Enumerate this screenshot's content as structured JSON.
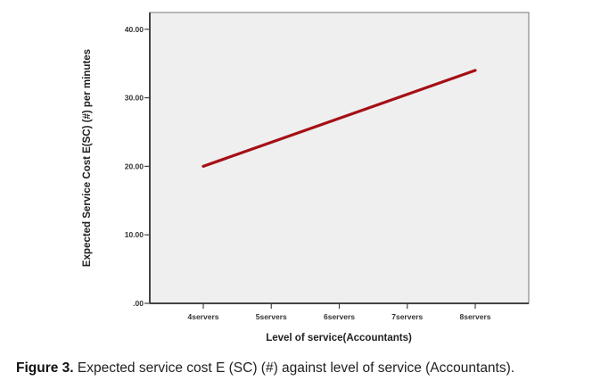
{
  "chart_data": {
    "type": "line",
    "title": "",
    "xlabel": "Level of service(Accountants)",
    "ylabel": "Expected Service Cost E(SC) (#) per minutes",
    "categories": [
      "4servers",
      "5servers",
      "6servers",
      "7servers",
      "8servers"
    ],
    "series": [
      {
        "name": "Expected service cost",
        "values": [
          20.0,
          23.5,
          27.0,
          30.5,
          34.0
        ],
        "color": "#a50f15"
      }
    ],
    "ylim": [
      0,
      42.5
    ],
    "yticks": [
      0,
      10,
      20,
      30,
      40
    ],
    "ytick_labels": [
      ".00",
      "10.00",
      "20.00",
      "30.00",
      "40.00"
    ],
    "grid": false,
    "legend": "none",
    "plot_background": "#efefef"
  },
  "caption": {
    "label": "Figure 3.",
    "text": " Expected service cost E (SC) (#) against level of service (Accountants)."
  }
}
